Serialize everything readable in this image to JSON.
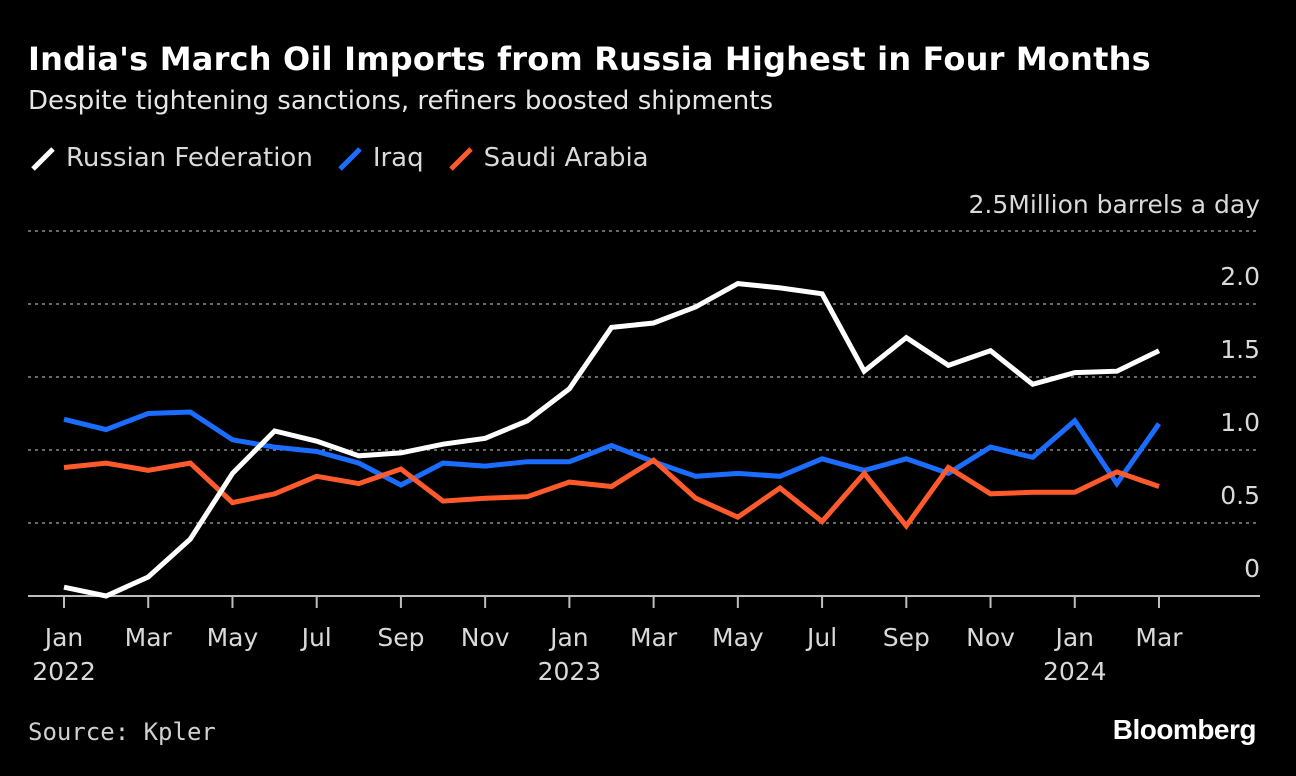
{
  "chart_data": {
    "type": "line",
    "title": "India's March Oil Imports from Russia Highest in Four Months",
    "subtitle": "Despite tightening sanctions, refiners boosted shipments",
    "ylabel": "Million barrels a day",
    "ylim": [
      0,
      2.5
    ],
    "yticks": [
      0,
      0.5,
      1.0,
      1.5,
      2.0,
      2.5
    ],
    "ytick_labels": [
      "0",
      "0.5",
      "1.0",
      "1.5",
      "2.0",
      "2.5"
    ],
    "grid": true,
    "x": [
      "2022-01",
      "2022-02",
      "2022-03",
      "2022-04",
      "2022-05",
      "2022-06",
      "2022-07",
      "2022-08",
      "2022-09",
      "2022-10",
      "2022-11",
      "2022-12",
      "2023-01",
      "2023-02",
      "2023-03",
      "2023-04",
      "2023-05",
      "2023-06",
      "2023-07",
      "2023-08",
      "2023-09",
      "2023-10",
      "2023-11",
      "2023-12",
      "2024-01",
      "2024-02",
      "2024-03"
    ],
    "xticks": [
      {
        "index": 0,
        "label": "Jan",
        "year": "2022"
      },
      {
        "index": 2,
        "label": "Mar"
      },
      {
        "index": 4,
        "label": "May"
      },
      {
        "index": 6,
        "label": "Jul"
      },
      {
        "index": 8,
        "label": "Sep"
      },
      {
        "index": 10,
        "label": "Nov"
      },
      {
        "index": 12,
        "label": "Jan",
        "year": "2023"
      },
      {
        "index": 14,
        "label": "Mar"
      },
      {
        "index": 16,
        "label": "May"
      },
      {
        "index": 18,
        "label": "Jul"
      },
      {
        "index": 20,
        "label": "Sep"
      },
      {
        "index": 22,
        "label": "Nov"
      },
      {
        "index": 24,
        "label": "Jan",
        "year": "2024"
      },
      {
        "index": 26,
        "label": "Mar"
      }
    ],
    "series": [
      {
        "name": "Iraq",
        "color": "#1a6dff",
        "values": [
          1.21,
          1.14,
          1.25,
          1.26,
          1.07,
          1.02,
          0.99,
          0.91,
          0.76,
          0.91,
          0.89,
          0.92,
          0.92,
          1.03,
          0.92,
          0.82,
          0.84,
          0.82,
          0.94,
          0.86,
          0.94,
          0.84,
          1.02,
          0.95,
          1.2,
          0.77,
          1.18
        ]
      },
      {
        "name": "Saudi Arabia",
        "color": "#ff5a2c",
        "values": [
          0.88,
          0.91,
          0.86,
          0.91,
          0.64,
          0.7,
          0.82,
          0.77,
          0.87,
          0.65,
          0.67,
          0.68,
          0.78,
          0.75,
          0.93,
          0.67,
          0.54,
          0.74,
          0.51,
          0.84,
          0.48,
          0.88,
          0.7,
          0.71,
          0.71,
          0.85,
          0.75
        ]
      },
      {
        "name": "Russian Federation",
        "color": "#ffffff",
        "values": [
          0.06,
          0.0,
          0.13,
          0.39,
          0.84,
          1.13,
          1.06,
          0.96,
          0.98,
          1.04,
          1.08,
          1.2,
          1.42,
          1.84,
          1.87,
          1.98,
          2.14,
          2.11,
          2.07,
          1.54,
          1.77,
          1.58,
          1.68,
          1.45,
          1.53,
          1.54,
          1.68
        ]
      }
    ],
    "legend_order": [
      "Russian Federation",
      "Iraq",
      "Saudi Arabia"
    ],
    "legend_position": "top-left"
  },
  "header": {
    "title": "India's March Oil Imports from Russia Highest in Four Months",
    "subtitle": "Despite tightening sanctions, refiners boosted shipments"
  },
  "legend": {
    "items": [
      {
        "label": "Russian Federation",
        "color": "#ffffff"
      },
      {
        "label": "Iraq",
        "color": "#1a6dff"
      },
      {
        "label": "Saudi Arabia",
        "color": "#ff5a2c"
      }
    ]
  },
  "footer": {
    "source": "Source: Kpler",
    "brand": "Bloomberg"
  }
}
